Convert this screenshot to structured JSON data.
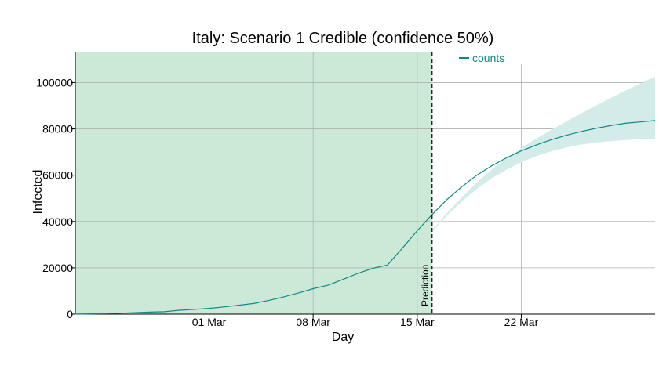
{
  "chart_data": {
    "type": "line",
    "title": "Italy: Scenario 1 Credible (confidence 50%)",
    "xlabel": "Day",
    "ylabel": "Infected",
    "x_start_date": "2020-02-21",
    "x_end_date": "2020-03-31",
    "xlim_days": [
      0,
      39
    ],
    "ylim": [
      0,
      113000
    ],
    "yticks": [
      0,
      20000,
      40000,
      60000,
      80000,
      100000
    ],
    "xticks": [
      {
        "day": 9,
        "label": "01 Mar"
      },
      {
        "day": 16,
        "label": "08 Mar"
      },
      {
        "day": 23,
        "label": "15 Mar"
      },
      {
        "day": 30,
        "label": "22 Mar"
      }
    ],
    "grid": true,
    "legend": {
      "position": "top-right",
      "entries": [
        "counts"
      ]
    },
    "colors": {
      "line": "#0e8a86",
      "band": "#d3ebe9",
      "observed_region": "#cce9d8",
      "grid": "#b0b0b0"
    },
    "observed_region_end_day": 24,
    "prediction_label": "Prediction",
    "series": [
      {
        "name": "counts",
        "x": [
          0,
          1,
          2,
          3,
          4,
          5,
          6,
          7,
          8,
          9,
          10,
          11,
          12,
          13,
          14,
          15,
          16,
          17,
          18,
          19,
          20,
          21,
          22,
          23,
          24,
          25,
          26,
          27,
          28,
          29,
          30,
          31,
          32,
          33,
          34,
          35,
          36,
          37,
          38,
          39
        ],
        "values": [
          50,
          150,
          230,
          400,
          650,
          890,
          1050,
          1700,
          2050,
          2500,
          3100,
          3850,
          4600,
          5900,
          7400,
          9100,
          11000,
          12500,
          15000,
          17600,
          19800,
          21200,
          28500,
          36000,
          43000,
          49500,
          55000,
          60000,
          64000,
          67500,
          70500,
          73000,
          75300,
          77200,
          78800,
          80200,
          81400,
          82400,
          83000,
          83600
        ]
      }
    ],
    "confidence_band": {
      "x": [
        23,
        24,
        25,
        26,
        27,
        28,
        29,
        30,
        31,
        32,
        33,
        34,
        35,
        36,
        37,
        38,
        39
      ],
      "lower": [
        28400,
        35800,
        42500,
        48700,
        54000,
        58600,
        62400,
        65600,
        68200,
        70300,
        71900,
        73200,
        74100,
        74700,
        75200,
        75500,
        75600
      ],
      "upper": [
        28600,
        36300,
        43600,
        50500,
        56800,
        62400,
        67400,
        71800,
        75800,
        79500,
        83100,
        86600,
        90000,
        93300,
        96500,
        99600,
        102600
      ]
    }
  }
}
